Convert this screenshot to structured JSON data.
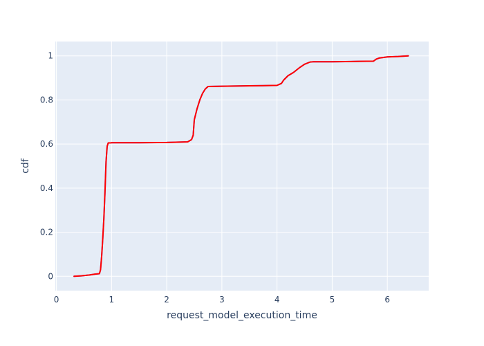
{
  "chart_data": {
    "type": "line",
    "title": "",
    "xlabel": "request_model_execution_time",
    "ylabel": "cdf",
    "xlim": [
      -0.02,
      6.75
    ],
    "ylim": [
      -0.065,
      1.065
    ],
    "x_ticks": [
      0,
      1,
      2,
      3,
      4,
      5,
      6
    ],
    "y_ticks": [
      0,
      0.2,
      0.4,
      0.6,
      0.8,
      1
    ],
    "x_tick_labels": [
      "0",
      "1",
      "2",
      "3",
      "4",
      "5",
      "6"
    ],
    "y_tick_labels": [
      "0",
      "0.2",
      "0.4",
      "0.6",
      "0.8",
      "1"
    ],
    "grid": true,
    "legend": "none",
    "colors": {
      "plot_bg": "#e5ecf6",
      "grid": "#ffffff",
      "text": "#2a3f5f",
      "series_primary": "#636efa",
      "series_secondary": "#ff0000"
    },
    "series": [
      {
        "color": "#636efa",
        "x": [
          0.32,
          0.45,
          0.6,
          0.7,
          0.78,
          0.8,
          0.82,
          0.84,
          0.86,
          0.88,
          0.9,
          0.92,
          0.94,
          0.96,
          0.98,
          1.0,
          1.5,
          2.0,
          2.38,
          2.45,
          2.48,
          2.5,
          2.55,
          2.6,
          2.65,
          2.7,
          2.75,
          3.0,
          3.5,
          4.0,
          4.08,
          4.12,
          4.2,
          4.3,
          4.4,
          4.5,
          4.6,
          4.65,
          5.0,
          5.5,
          5.75,
          5.8,
          5.85,
          6.0,
          6.2,
          6.38
        ],
        "y": [
          0.0,
          0.002,
          0.006,
          0.01,
          0.012,
          0.03,
          0.09,
          0.17,
          0.26,
          0.38,
          0.52,
          0.59,
          0.605,
          0.605,
          0.605,
          0.606,
          0.606,
          0.607,
          0.61,
          0.62,
          0.64,
          0.71,
          0.76,
          0.8,
          0.83,
          0.85,
          0.861,
          0.862,
          0.864,
          0.866,
          0.875,
          0.89,
          0.91,
          0.925,
          0.945,
          0.962,
          0.972,
          0.973,
          0.973,
          0.975,
          0.976,
          0.985,
          0.99,
          0.995,
          0.997,
          1.0
        ]
      },
      {
        "color": "#ff0000",
        "x": [
          0.32,
          0.45,
          0.6,
          0.7,
          0.78,
          0.8,
          0.82,
          0.84,
          0.86,
          0.88,
          0.9,
          0.92,
          0.94,
          0.96,
          0.98,
          1.0,
          1.5,
          2.0,
          2.38,
          2.45,
          2.48,
          2.5,
          2.55,
          2.6,
          2.65,
          2.7,
          2.75,
          3.0,
          3.5,
          4.0,
          4.08,
          4.12,
          4.2,
          4.3,
          4.4,
          4.5,
          4.6,
          4.65,
          5.0,
          5.5,
          5.75,
          5.8,
          5.85,
          6.0,
          6.2,
          6.38
        ],
        "y": [
          0.0,
          0.002,
          0.006,
          0.01,
          0.012,
          0.03,
          0.09,
          0.17,
          0.26,
          0.38,
          0.52,
          0.59,
          0.605,
          0.605,
          0.605,
          0.606,
          0.606,
          0.607,
          0.61,
          0.62,
          0.64,
          0.71,
          0.76,
          0.8,
          0.83,
          0.85,
          0.861,
          0.862,
          0.864,
          0.866,
          0.875,
          0.89,
          0.91,
          0.925,
          0.945,
          0.962,
          0.972,
          0.973,
          0.973,
          0.975,
          0.976,
          0.985,
          0.99,
          0.995,
          0.997,
          1.0
        ]
      }
    ]
  }
}
